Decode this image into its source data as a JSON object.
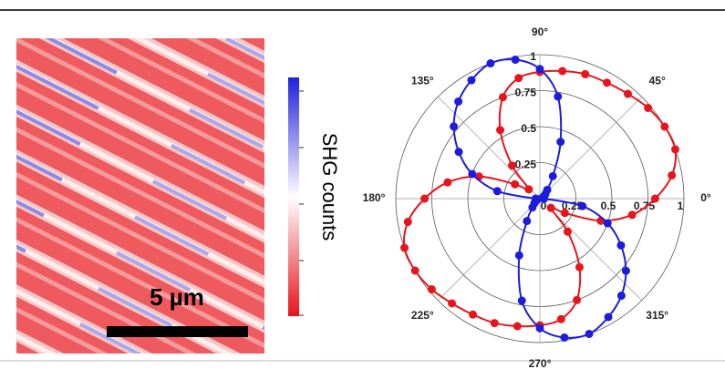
{
  "chart_data": [
    {
      "type": "image",
      "colorbar_label": "SHG counts",
      "scale_bar_label": "5 µm",
      "colormap": [
        "#e8141c",
        "#ffffff",
        "#2020e0"
      ]
    },
    {
      "type": "polar",
      "x": [
        0,
        10,
        20,
        30,
        40,
        50,
        60,
        70,
        80,
        90,
        100,
        110,
        120,
        130,
        140,
        150,
        160,
        170,
        180,
        190,
        200,
        210,
        220,
        230,
        240,
        250,
        260,
        270,
        280,
        290,
        300,
        310,
        320,
        330,
        340,
        350
      ],
      "xticks": [
        {
          "value": 0,
          "label": "0°"
        },
        {
          "value": 45,
          "label": "45°"
        },
        {
          "value": 90,
          "label": "90°"
        },
        {
          "value": 135,
          "label": "135°"
        },
        {
          "value": 180,
          "label": "180°"
        },
        {
          "value": 225,
          "label": "225°"
        },
        {
          "value": 270,
          "label": "270°"
        },
        {
          "value": 315,
          "label": "315°"
        }
      ],
      "ylim": [
        0,
        1
      ],
      "yticks": [
        0,
        0.25,
        0.5,
        0.75,
        1
      ],
      "series": [
        {
          "color": "#e8141c",
          "values": [
            0.8,
            0.93,
            1.0,
            1.0,
            0.98,
            0.95,
            0.93,
            0.92,
            0.9,
            0.88,
            0.85,
            0.75,
            0.55,
            0.3,
            0.1,
            0.2,
            0.45,
            0.65,
            0.8,
            0.93,
            1.0,
            1.0,
            0.98,
            0.95,
            0.93,
            0.92,
            0.9,
            0.88,
            0.85,
            0.75,
            0.55,
            0.3,
            0.1,
            0.2,
            0.45,
            0.65
          ]
        },
        {
          "color": "#1c1ce0",
          "values": [
            0.03,
            0.02,
            0.02,
            0.03,
            0.05,
            0.08,
            0.18,
            0.42,
            0.72,
            0.9,
            0.98,
            1.0,
            0.95,
            0.88,
            0.78,
            0.65,
            0.5,
            0.3,
            0.03,
            0.02,
            0.02,
            0.03,
            0.05,
            0.08,
            0.18,
            0.42,
            0.72,
            0.9,
            0.98,
            1.0,
            0.95,
            0.88,
            0.78,
            0.65,
            0.5,
            0.3
          ]
        }
      ]
    }
  ]
}
